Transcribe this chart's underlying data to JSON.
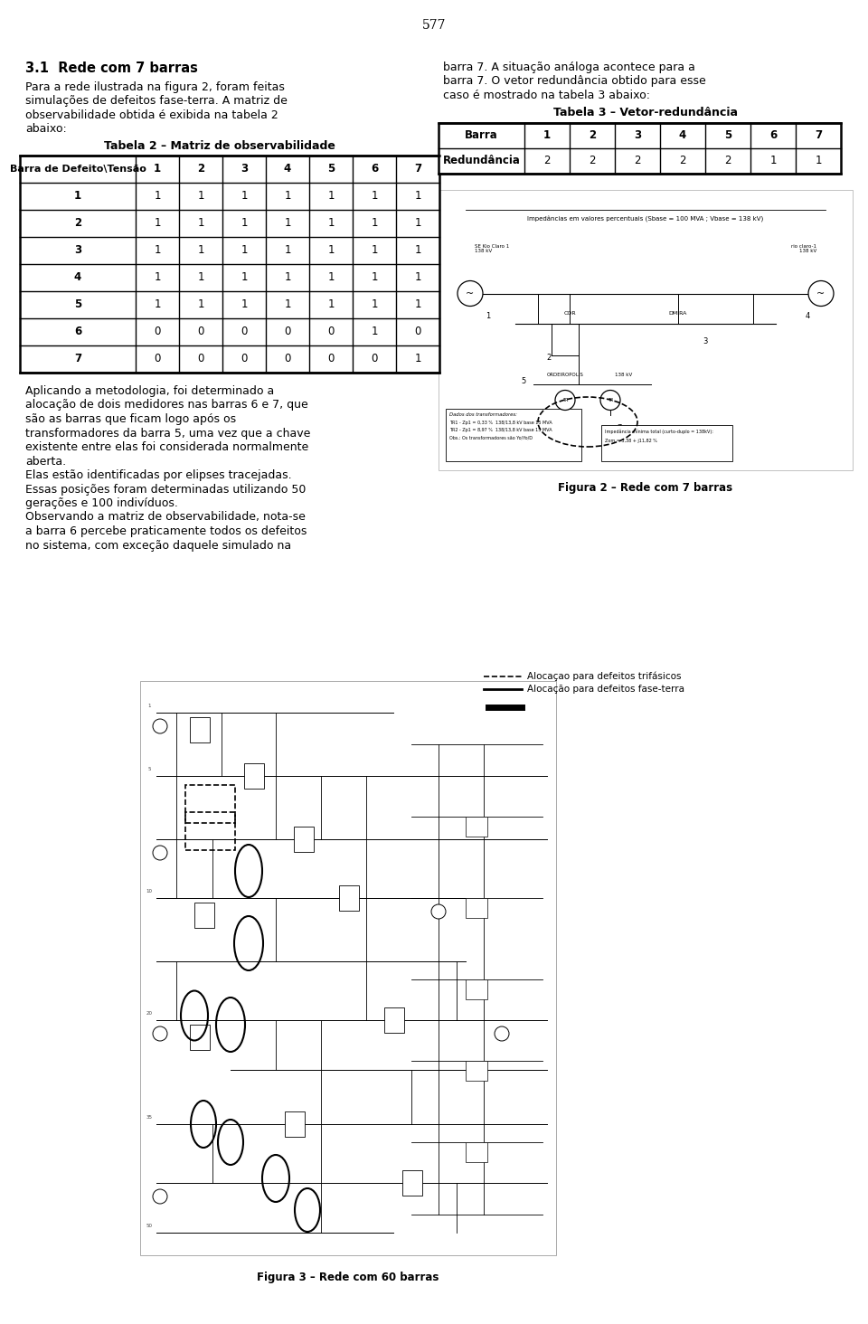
{
  "page_number": "577",
  "section_title": "3.1  Rede com 7 barras",
  "background_color": "#ffffff",
  "text_color": "#000000",
  "table2_title": "Tabela 2 – Matriz de observabilidade",
  "table2_header": [
    "Barra de Defeito\\Tensão",
    "1",
    "2",
    "3",
    "4",
    "5",
    "6",
    "7"
  ],
  "table2_rows": [
    [
      "1",
      "1",
      "1",
      "1",
      "1",
      "1",
      "1",
      "1"
    ],
    [
      "2",
      "1",
      "1",
      "1",
      "1",
      "1",
      "1",
      "1"
    ],
    [
      "3",
      "1",
      "1",
      "1",
      "1",
      "1",
      "1",
      "1"
    ],
    [
      "4",
      "1",
      "1",
      "1",
      "1",
      "1",
      "1",
      "1"
    ],
    [
      "5",
      "1",
      "1",
      "1",
      "1",
      "1",
      "1",
      "1"
    ],
    [
      "6",
      "0",
      "0",
      "0",
      "0",
      "0",
      "1",
      "0"
    ],
    [
      "7",
      "0",
      "0",
      "0",
      "0",
      "0",
      "0",
      "1"
    ]
  ],
  "table3_title": "Tabela 3 – Vetor-redundância",
  "table3_header": [
    "Barra",
    "1",
    "2",
    "3",
    "4",
    "5",
    "6",
    "7"
  ],
  "table3_rows": [
    [
      "Redundância",
      "2",
      "2",
      "2",
      "2",
      "2",
      "1",
      "1"
    ]
  ],
  "left_col_lines": [
    "Para a rede ilustrada na figura 2, foram feitas",
    "simulações de defeitos fase-terra. A matriz de",
    "observabilidade obtida é exibida na tabela 2",
    "abaixo:"
  ],
  "left_col_lines2": [
    "Aplicando a metodologia, foi determinado a",
    "alocação de dois medidores nas barras 6 e 7, que",
    "são as barras que ficam logo após os",
    "transformadores da barra 5, uma vez que a chave",
    "existente entre elas foi considerada normalmente",
    "aberta.",
    "Elas estão identificadas por elipses tracejadas.",
    "Essas posições foram determinadas utilizando 50",
    "gerações e 100 indivíduos.",
    "Observando a matriz de observabilidade, nota-se",
    "a barra 6 percebe praticamente todos os defeitos",
    "no sistema, com exceção daquele simulado na"
  ],
  "right_col_lines": [
    "barra 7. A situação análoga acontece para a",
    "barra 7. O vetor redundância obtido para esse",
    "caso é mostrado na tabela 3 abaixo:"
  ],
  "fig2_caption": "Figura 2 – Rede com 7 barras",
  "fig3_caption": "Figura 3 – Rede com 60 barras",
  "legend_line1": "Alocaçao para defeitos trifásicos",
  "legend_line2": "Alocação para defeitos fase-terra",
  "impedance_text": "Impedâncias em valores percentuais (Sbase = 100 MVA ; Vbase = 138 kV)"
}
